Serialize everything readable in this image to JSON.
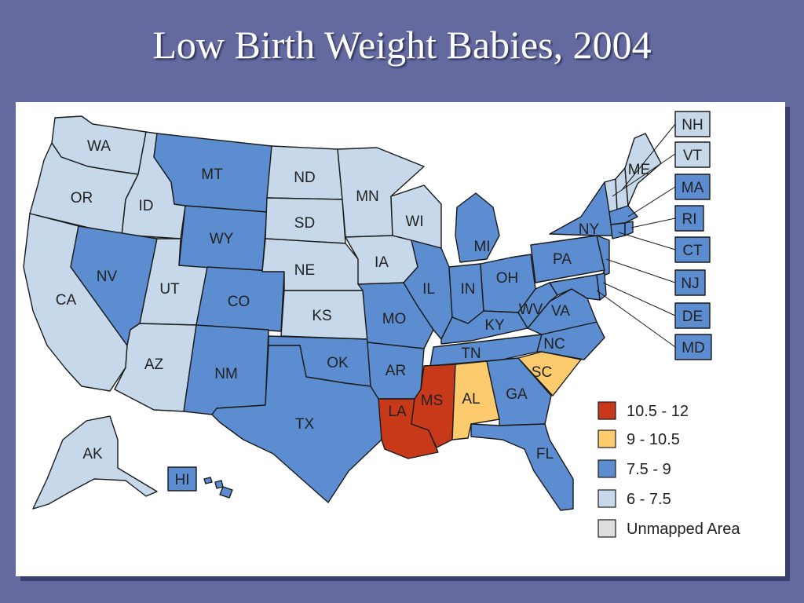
{
  "title": "Low Birth Weight Babies, 2004",
  "colors": {
    "c1": "#c8391a",
    "c2": "#fbcb6d",
    "c3": "#5b8dd0",
    "c4": "#c6d8ea",
    "unmapped": "#dddddd"
  },
  "legend": [
    {
      "range": "10.5 - 12",
      "cls": "c1"
    },
    {
      "range": "9 - 10.5",
      "cls": "c2"
    },
    {
      "range": "7.5 - 9",
      "cls": "c3"
    },
    {
      "range": "6 - 7.5",
      "cls": "c4"
    },
    {
      "range": "Unmapped Area",
      "cls": "unmapped"
    }
  ],
  "states": {
    "WA": {
      "label": "WA",
      "cls": "c4"
    },
    "OR": {
      "label": "OR",
      "cls": "c4"
    },
    "CA": {
      "label": "CA",
      "cls": "c4"
    },
    "ID": {
      "label": "ID",
      "cls": "c4"
    },
    "NV": {
      "label": "NV",
      "cls": "c3"
    },
    "UT": {
      "label": "UT",
      "cls": "c4"
    },
    "AZ": {
      "label": "AZ",
      "cls": "c4"
    },
    "MT": {
      "label": "MT",
      "cls": "c3"
    },
    "WY": {
      "label": "WY",
      "cls": "c3"
    },
    "CO": {
      "label": "CO",
      "cls": "c3"
    },
    "NM": {
      "label": "NM",
      "cls": "c3"
    },
    "ND": {
      "label": "ND",
      "cls": "c4"
    },
    "SD": {
      "label": "SD",
      "cls": "c4"
    },
    "NE": {
      "label": "NE",
      "cls": "c4"
    },
    "KS": {
      "label": "KS",
      "cls": "c4"
    },
    "OK": {
      "label": "OK",
      "cls": "c3"
    },
    "TX": {
      "label": "TX",
      "cls": "c3"
    },
    "MN": {
      "label": "MN",
      "cls": "c4"
    },
    "IA": {
      "label": "IA",
      "cls": "c4"
    },
    "MO": {
      "label": "MO",
      "cls": "c3"
    },
    "AR": {
      "label": "AR",
      "cls": "c3"
    },
    "LA": {
      "label": "LA",
      "cls": "c1"
    },
    "WI": {
      "label": "WI",
      "cls": "c4"
    },
    "IL": {
      "label": "IL",
      "cls": "c3"
    },
    "MI": {
      "label": "MI",
      "cls": "c3"
    },
    "IN": {
      "label": "IN",
      "cls": "c3"
    },
    "OH": {
      "label": "OH",
      "cls": "c3"
    },
    "KY": {
      "label": "KY",
      "cls": "c3"
    },
    "TN": {
      "label": "TN",
      "cls": "c3"
    },
    "MS": {
      "label": "MS",
      "cls": "c1"
    },
    "AL": {
      "label": "AL",
      "cls": "c2"
    },
    "GA": {
      "label": "GA",
      "cls": "c3"
    },
    "FL": {
      "label": "FL",
      "cls": "c3"
    },
    "SC": {
      "label": "SC",
      "cls": "c2"
    },
    "NC": {
      "label": "NC",
      "cls": "c3"
    },
    "VA": {
      "label": "VA",
      "cls": "c3"
    },
    "WV": {
      "label": "WV",
      "cls": "c3"
    },
    "PA": {
      "label": "PA",
      "cls": "c3"
    },
    "NY": {
      "label": "NY",
      "cls": "c3"
    },
    "ME": {
      "label": "ME",
      "cls": "c4"
    },
    "AK": {
      "label": "AK",
      "cls": "c4"
    },
    "HI": {
      "label": "HI",
      "cls": "c3"
    }
  },
  "callouts": {
    "NH": {
      "label": "NH",
      "cls": "c4"
    },
    "VT": {
      "label": "VT",
      "cls": "c4"
    },
    "MA": {
      "label": "MA",
      "cls": "c3"
    },
    "RI": {
      "label": "RI",
      "cls": "c3"
    },
    "CT": {
      "label": "CT",
      "cls": "c3"
    },
    "NJ": {
      "label": "NJ",
      "cls": "c3"
    },
    "DE": {
      "label": "DE",
      "cls": "c3"
    },
    "MD": {
      "label": "MD",
      "cls": "c3"
    }
  }
}
